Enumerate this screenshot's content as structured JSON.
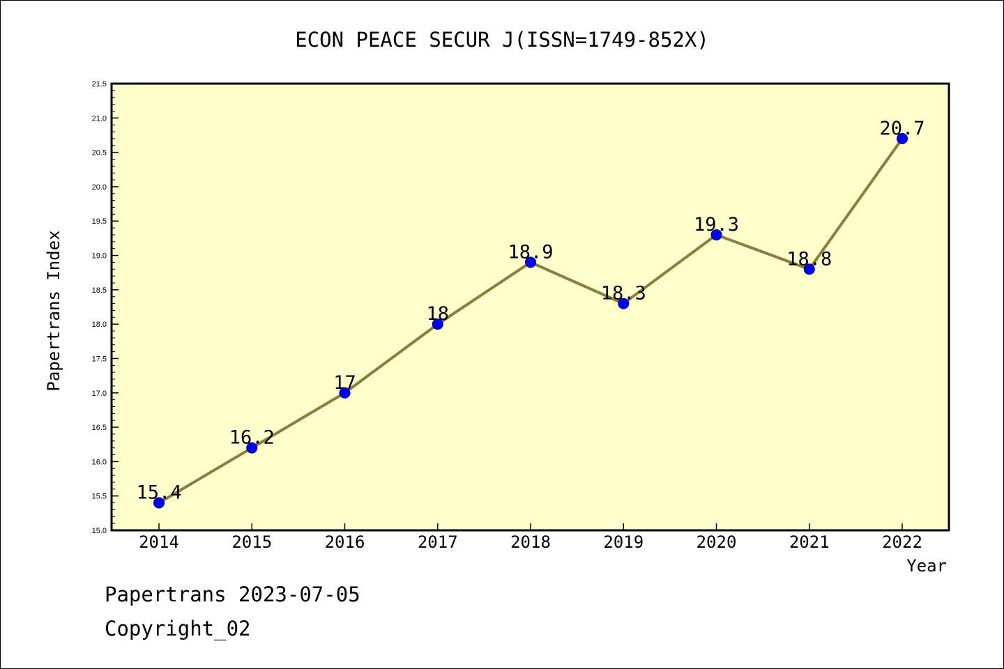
{
  "chart_data": {
    "type": "line",
    "title": "ECON PEACE SECUR J(ISSN=1749-852X)",
    "xlabel": "Year",
    "ylabel": "Papertrans Index",
    "categories": [
      "2014",
      "2015",
      "2016",
      "2017",
      "2018",
      "2019",
      "2020",
      "2021",
      "2022"
    ],
    "series": [
      {
        "values": [
          15.4,
          16.2,
          17,
          18,
          18.9,
          18.3,
          19.3,
          18.8,
          20.7
        ],
        "labels": [
          "15.4",
          "16.2",
          "17",
          "18",
          "18.9",
          "18.3",
          "19.3",
          "18.8",
          "20.7"
        ]
      }
    ],
    "ylim": [
      15.0,
      21.5
    ],
    "yticks": [
      "15.0",
      "15.5",
      "16.0",
      "16.5",
      "17.0",
      "17.5",
      "18.0",
      "18.5",
      "19.0",
      "19.5",
      "20.0",
      "20.5",
      "21.0",
      "21.5"
    ],
    "grid": false,
    "colors": {
      "plot_background": "#ffffcc",
      "line": "#8b7d3a",
      "marker": "#0000ff",
      "axis": "#000000"
    }
  },
  "footer": {
    "line1": "Papertrans 2023-07-05",
    "line2": "Copyright_02"
  }
}
